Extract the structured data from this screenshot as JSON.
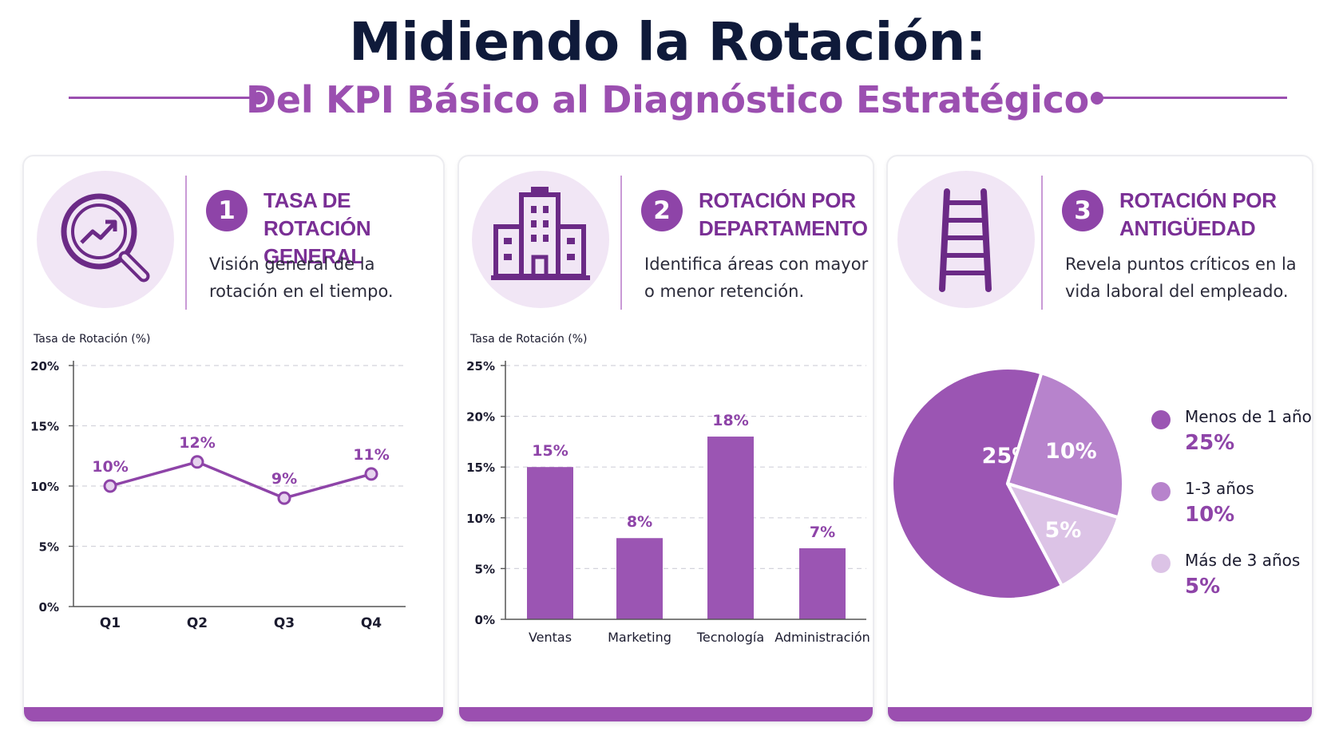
{
  "header": {
    "title": "Midiendo la Rotación:",
    "subtitle": "Del KPI Básico al Diagnóstico Estratégico"
  },
  "colors": {
    "primary": "#8e44a8",
    "accent": "#9b4fb0",
    "light": "#f1e6f5",
    "slice_mid": "#b783cc",
    "slice_light": "#dcc3e6"
  },
  "cards": [
    {
      "number": "1",
      "icon": "magnifier-trend-icon",
      "heading": "TASA DE ROTACIÓN GENERAL",
      "description": "Visión general de la rotación en el tiempo."
    },
    {
      "number": "2",
      "icon": "building-icon",
      "heading": "ROTACIÓN POR DEPARTAMENTO",
      "description": "Identifica áreas con mayor o menor retención."
    },
    {
      "number": "3",
      "icon": "ladder-icon",
      "heading": "ROTACIÓN POR ANTIGÜEDAD",
      "description": "Revela puntos críticos en la vida laboral del empleado."
    }
  ],
  "chart_data": [
    {
      "type": "line",
      "ylabel": "Tasa de Rotación (%)",
      "categories": [
        "Q1",
        "Q2",
        "Q3",
        "Q4"
      ],
      "values": [
        10,
        12,
        9,
        11
      ],
      "data_labels": [
        "10%",
        "12%",
        "9%",
        "11%"
      ],
      "ylim": [
        0,
        20
      ],
      "yticks": [
        0,
        5,
        10,
        15,
        20
      ],
      "ytick_labels": [
        "0%",
        "5%",
        "10%",
        "15%",
        "20%"
      ],
      "grid": "horizontal dashed"
    },
    {
      "type": "bar",
      "ylabel": "Tasa de Rotación (%)",
      "categories": [
        "Ventas",
        "Marketing",
        "Tecnología",
        "Administración"
      ],
      "values": [
        15,
        8,
        18,
        7
      ],
      "data_labels": [
        "15%",
        "8%",
        "18%",
        "7%"
      ],
      "ylim": [
        0,
        25
      ],
      "yticks": [
        0,
        5,
        10,
        15,
        20,
        25
      ],
      "ytick_labels": [
        "0%",
        "5%",
        "10%",
        "15%",
        "20%",
        "25%"
      ],
      "grid": "horizontal dashed"
    },
    {
      "type": "pie",
      "categories": [
        "Menos de 1 año",
        "1-3 años",
        "Más de 3 años"
      ],
      "values": [
        25,
        10,
        5
      ],
      "data_labels": [
        "25%",
        "10%",
        "5%"
      ],
      "legend": "right"
    }
  ]
}
